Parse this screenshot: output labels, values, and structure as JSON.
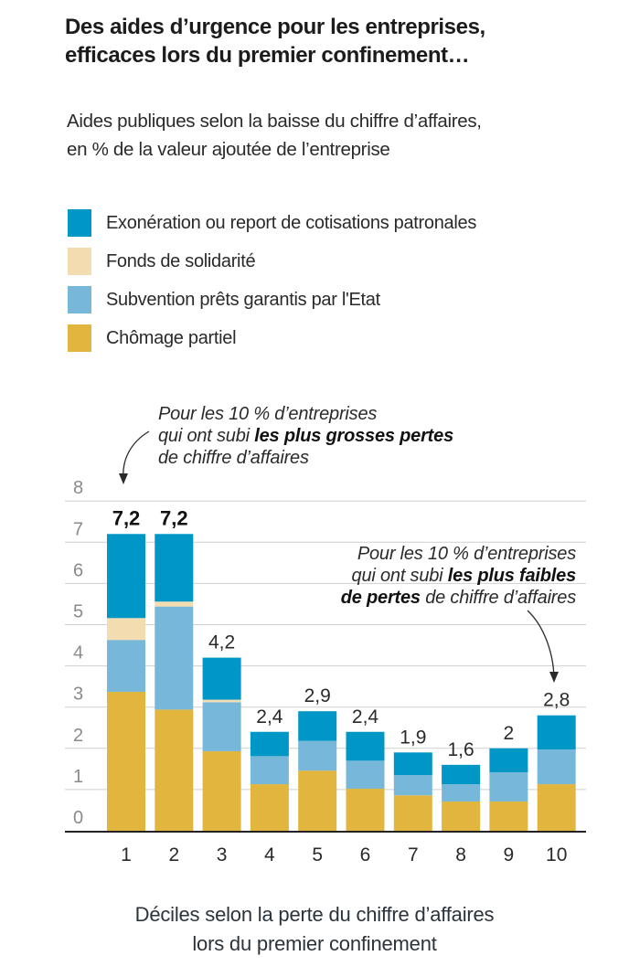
{
  "header": {
    "title_line1": "Des aides d’urgence pour les entreprises,",
    "title_line2": "efficaces lors du premier confinement…",
    "subtitle_line1": "Aides publiques selon la baisse du chiffre d’affaires,",
    "subtitle_line2": "en % de la valeur ajoutée de l’entreprise"
  },
  "colors": {
    "exoneration": "#0096C6",
    "fonds": "#F3DDB0",
    "pge": "#77B7DA",
    "chomage": "#E2B53E",
    "grid": "#cfcfcf",
    "axis": "#222222",
    "tick_label": "#8a8a8a"
  },
  "legend": [
    {
      "key": "exoneration",
      "label": "Exonération ou report de cotisations patronales"
    },
    {
      "key": "fonds",
      "label": "Fonds de solidarité"
    },
    {
      "key": "pge",
      "label": "Subvention prêts garantis par l'Etat"
    },
    {
      "key": "chomage",
      "label": "Chômage partiel"
    }
  ],
  "annotations": {
    "top": {
      "line1": "Pour les 10 % d’entreprises",
      "line2_normal": "qui ont subi ",
      "line2_bold": "les plus grosses pertes",
      "line3": "de chiffre d’affaires"
    },
    "right": {
      "line1": "Pour les 10 % d’entreprises",
      "line2_normal": "qui ont subi ",
      "line2_bold": "les plus faibles",
      "line3_bold": "de pertes",
      "line3_normal": " de chiffre d’affaires"
    }
  },
  "chart_data": {
    "type": "bar",
    "stacked": true,
    "title": "Des aides d’urgence pour les entreprises, efficaces lors du premier confinement…",
    "subtitle": "Aides publiques selon la baisse du chiffre d’affaires, en % de la valeur ajoutée de l’entreprise",
    "xlabel": "Déciles selon la perte du chiffre d’affaires lors du premier confinement",
    "ylabel": "",
    "ylim": [
      0,
      8
    ],
    "yticks": [
      0,
      1,
      2,
      3,
      4,
      5,
      6,
      7,
      8
    ],
    "grid": true,
    "legend_position": "top-left",
    "categories": [
      "1",
      "2",
      "3",
      "4",
      "5",
      "6",
      "7",
      "8",
      "9",
      "10"
    ],
    "series": [
      {
        "name": "Chômage partiel",
        "key": "chomage",
        "values": [
          3.37,
          2.94,
          1.93,
          1.13,
          1.46,
          1.02,
          0.86,
          0.71,
          0.71,
          1.13
        ]
      },
      {
        "name": "Subvention prêts garantis par l'Etat",
        "key": "pge",
        "values": [
          1.26,
          2.5,
          1.19,
          0.68,
          0.72,
          0.68,
          0.49,
          0.42,
          0.71,
          0.84
        ]
      },
      {
        "name": "Fonds de solidarité",
        "key": "fonds",
        "values": [
          0.53,
          0.12,
          0.06,
          0.0,
          0.0,
          0.0,
          0.0,
          0.0,
          0.0,
          0.0
        ]
      },
      {
        "name": "Exonération ou report de cotisations patronales",
        "key": "exoneration",
        "values": [
          2.04,
          1.64,
          1.02,
          0.59,
          0.72,
          0.7,
          0.55,
          0.47,
          0.58,
          0.83
        ]
      }
    ],
    "totals": [
      7.2,
      7.2,
      4.2,
      2.4,
      2.9,
      2.4,
      1.9,
      1.6,
      2.0,
      2.8
    ],
    "total_labels": [
      "7,2",
      "7,2",
      "4,2",
      "2,4",
      "2,9",
      "2,4",
      "1,9",
      "1,6",
      "2",
      "2,8"
    ],
    "total_labels_bold": [
      true,
      true,
      false,
      false,
      false,
      false,
      false,
      false,
      false,
      false
    ]
  }
}
